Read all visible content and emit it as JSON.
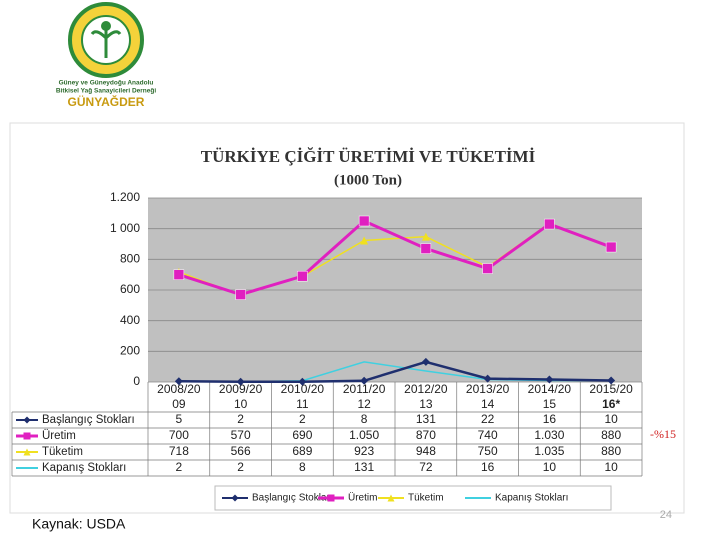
{
  "header": {
    "line1": "Güney ve Güneydoğu Anadolu",
    "line2": "Bitkisel Yağ Sanayicileri Derneği",
    "name": "GÜNYAĞDER"
  },
  "chart_data": {
    "type": "line",
    "title": "TÜRKİYE ÇİĞİT ÜRETİMİ VE TÜKETİMİ",
    "subtitle": "(1000 Ton)",
    "categories": [
      [
        "2008/20",
        "09"
      ],
      [
        "2009/20",
        "10"
      ],
      [
        "2010/20",
        "11"
      ],
      [
        "2011/20",
        "12"
      ],
      [
        "2012/20",
        "13"
      ],
      [
        "2013/20",
        "14"
      ],
      [
        "2014/20",
        "15"
      ],
      [
        "2015/20",
        "16*"
      ]
    ],
    "ylim": [
      0,
      1200
    ],
    "yticks": [
      0,
      200,
      400,
      600,
      800,
      {
        "value": 1000,
        "label": "1 000"
      },
      {
        "value": 1200,
        "label": "1.200"
      }
    ],
    "series": [
      {
        "name": "Başlangıç Stokları",
        "color": "#1f2f6e",
        "marker": "diamond",
        "values": [
          5,
          2,
          2,
          8,
          131,
          22,
          16,
          10
        ]
      },
      {
        "name": "Üretim",
        "color": "#e020c0",
        "marker": "square",
        "values": [
          700,
          570,
          690,
          1050,
          870,
          740,
          1030,
          880
        ],
        "value_labels": [
          "700",
          "570",
          "690",
          "1.050",
          "870",
          "740",
          "1.030",
          "880"
        ]
      },
      {
        "name": "Tüketim",
        "color": "#f0e020",
        "marker": "triangle",
        "values": [
          718,
          566,
          689,
          923,
          948,
          750,
          1035,
          880
        ],
        "value_labels": [
          "718",
          "566",
          "689",
          "923",
          "948",
          "750",
          "1.035",
          "880"
        ]
      },
      {
        "name": "Kapanış Stokları",
        "color": "#40d0e0",
        "marker": "none",
        "values": [
          2,
          2,
          8,
          131,
          72,
          16,
          10,
          10
        ]
      }
    ],
    "annotation": "-%15",
    "source": "Kaynak: USDA",
    "page_number": "24"
  }
}
